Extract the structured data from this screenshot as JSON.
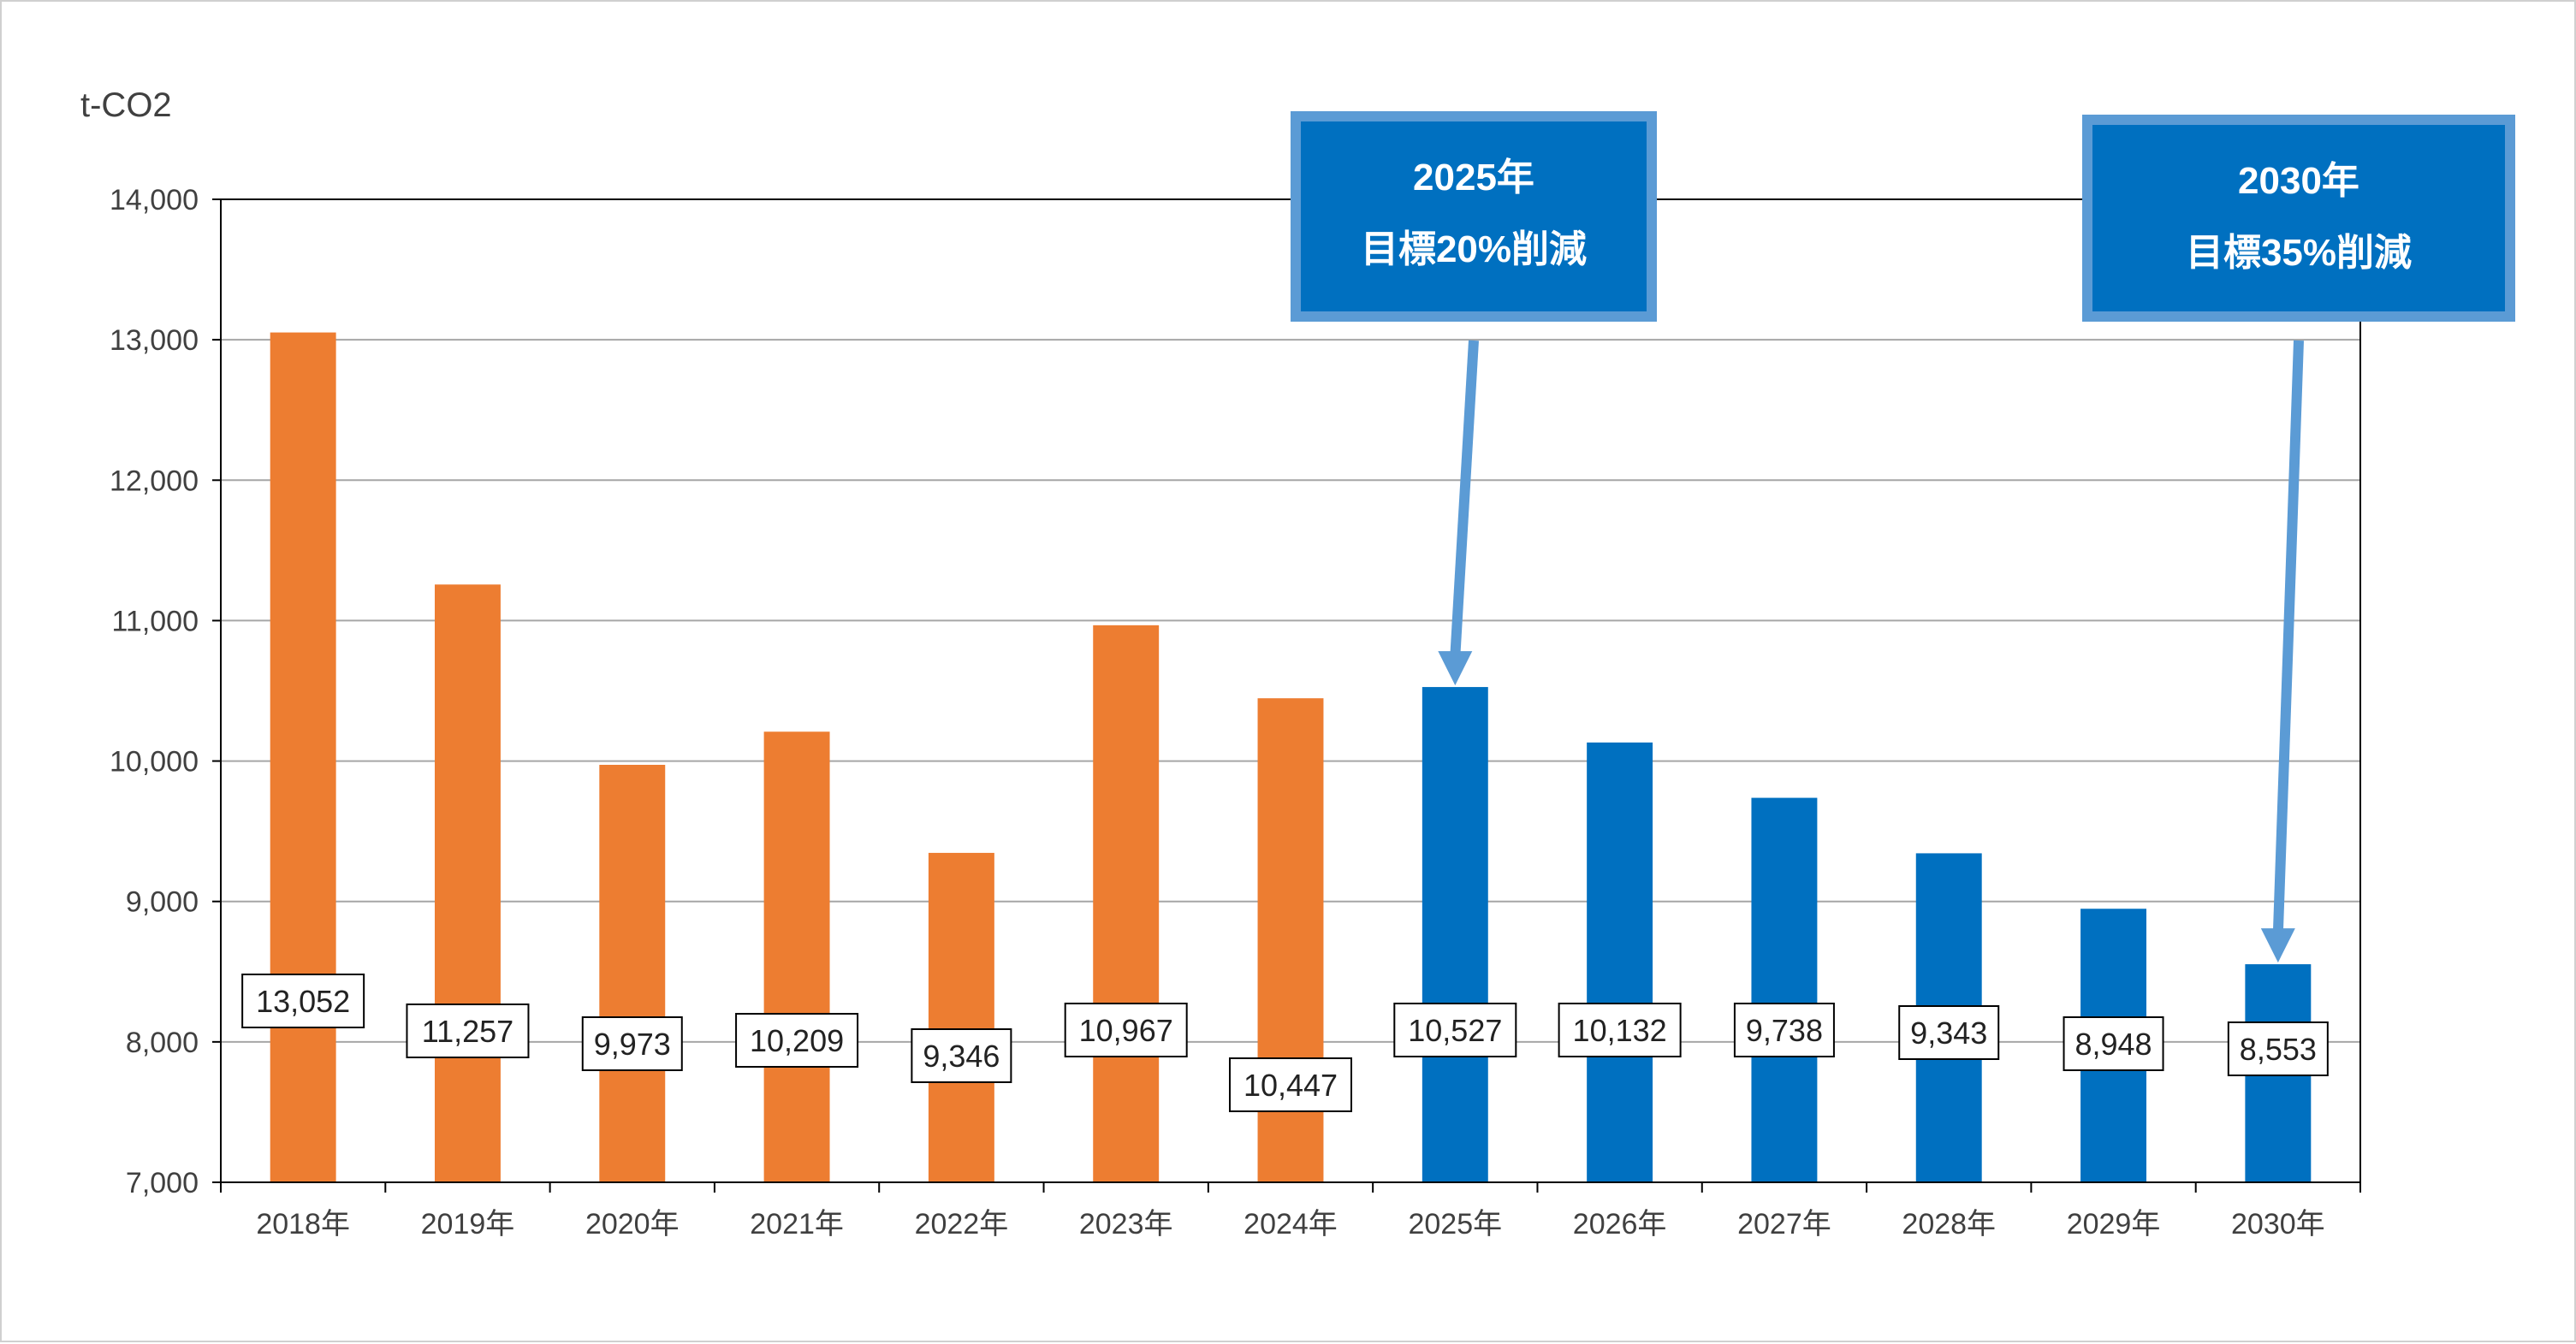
{
  "chart_data": {
    "type": "bar",
    "ylabel": "t-CO2",
    "ylim": [
      7000,
      14000
    ],
    "yticks": [
      7000,
      8000,
      9000,
      10000,
      11000,
      12000,
      13000,
      14000
    ],
    "ytick_labels": [
      "7,000",
      "8,000",
      "9,000",
      "10,000",
      "11,000",
      "12,000",
      "13,000",
      "14,000"
    ],
    "grid": true,
    "categories": [
      "2018年",
      "2019年",
      "2020年",
      "2021年",
      "2022年",
      "2023年",
      "2024年",
      "2025年",
      "2026年",
      "2027年",
      "2028年",
      "2029年",
      "2030年"
    ],
    "values": [
      13052,
      11257,
      9973,
      10209,
      9346,
      10967,
      10447,
      10527,
      10132,
      9738,
      9343,
      8948,
      8553
    ],
    "value_labels": [
      "13,052",
      "11,257",
      "9,973",
      "10,209",
      "9,346",
      "10,967",
      "10,447",
      "10,527",
      "10,132",
      "9,738",
      "9,343",
      "8,948",
      "8,553"
    ],
    "actual_color": "#ED7D31",
    "target_color": "#0070C0",
    "bar_colors": [
      "#ED7D31",
      "#ED7D31",
      "#ED7D31",
      "#ED7D31",
      "#ED7D31",
      "#ED7D31",
      "#ED7D31",
      "#0070C0",
      "#0070C0",
      "#0070C0",
      "#0070C0",
      "#0070C0",
      "#0070C0"
    ],
    "annotations": [
      {
        "target": "2025年",
        "line1": "2025年",
        "line2": "目標20%削減"
      },
      {
        "target": "2030年",
        "line1": "2030年",
        "line2": "目標35%削減"
      }
    ],
    "callout_fill": "#0070C0",
    "callout_border": "#5B9BD5",
    "arrow_color": "#5B9BD5"
  }
}
